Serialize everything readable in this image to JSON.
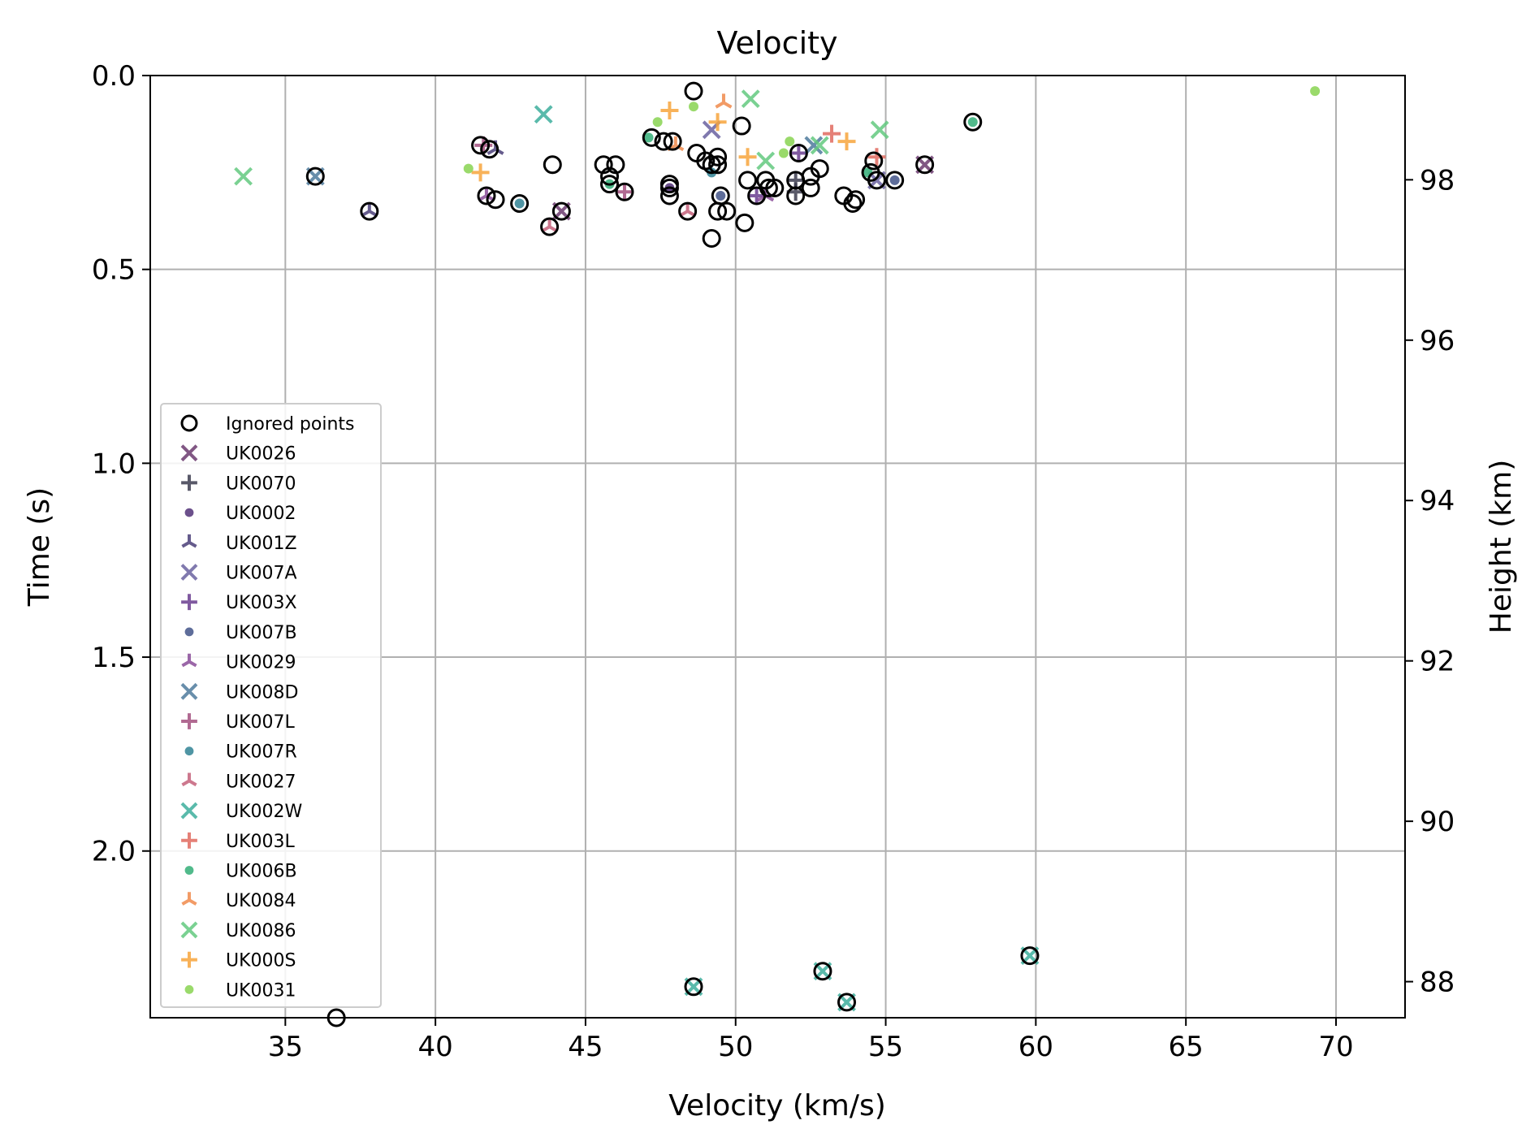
{
  "chart_data": {
    "type": "scatter",
    "title": "Velocity",
    "xlabel": "Velocity (km/s)",
    "ylabel": "Time (s)",
    "y2label": "Height (km)",
    "xlim": [
      30.5,
      72.3
    ],
    "ylim": [
      2.43,
      0.0
    ],
    "y2lim": [
      87.55,
      99.3
    ],
    "y_inverted": true,
    "grid": true,
    "legend_position": "lower-left",
    "x_ticks": [
      "35",
      "40",
      "45",
      "50",
      "55",
      "60",
      "65",
      "70"
    ],
    "y_ticks": [
      "0.0",
      "0.5",
      "1.0",
      "1.5",
      "2.0"
    ],
    "y2_ticks": [
      "88",
      "90",
      "92",
      "94",
      "96",
      "98"
    ],
    "series": [
      {
        "name": "Ignored points",
        "marker": "o-hollow",
        "color": "#000000",
        "points": [
          [
            48.6,
            0.04
          ],
          [
            57.9,
            0.12
          ],
          [
            41.5,
            0.18
          ],
          [
            41.8,
            0.19
          ],
          [
            47.6,
            0.17
          ],
          [
            47.9,
            0.17
          ],
          [
            48.7,
            0.2
          ],
          [
            49.4,
            0.21
          ],
          [
            49.0,
            0.22
          ],
          [
            49.2,
            0.23
          ],
          [
            49.4,
            0.23
          ],
          [
            45.6,
            0.23
          ],
          [
            46.0,
            0.23
          ],
          [
            43.9,
            0.23
          ],
          [
            50.2,
            0.13
          ],
          [
            52.1,
            0.2
          ],
          [
            54.6,
            0.22
          ],
          [
            56.3,
            0.23
          ],
          [
            52.8,
            0.24
          ],
          [
            54.5,
            0.25
          ],
          [
            45.8,
            0.26
          ],
          [
            50.4,
            0.27
          ],
          [
            52.0,
            0.27
          ],
          [
            52.5,
            0.26
          ],
          [
            51.0,
            0.27
          ],
          [
            55.3,
            0.27
          ],
          [
            54.7,
            0.27
          ],
          [
            45.8,
            0.28
          ],
          [
            47.8,
            0.28
          ],
          [
            47.8,
            0.29
          ],
          [
            51.1,
            0.29
          ],
          [
            51.3,
            0.29
          ],
          [
            52.5,
            0.29
          ],
          [
            49.5,
            0.31
          ],
          [
            41.7,
            0.31
          ],
          [
            42.0,
            0.32
          ],
          [
            47.8,
            0.31
          ],
          [
            52.0,
            0.31
          ],
          [
            53.6,
            0.31
          ],
          [
            54.0,
            0.32
          ],
          [
            53.9,
            0.33
          ],
          [
            46.3,
            0.3
          ],
          [
            50.7,
            0.31
          ],
          [
            42.8,
            0.33
          ],
          [
            44.2,
            0.35
          ],
          [
            48.4,
            0.35
          ],
          [
            49.4,
            0.35
          ],
          [
            49.7,
            0.35
          ],
          [
            37.8,
            0.35
          ],
          [
            36.0,
            0.26
          ],
          [
            50.3,
            0.38
          ],
          [
            43.8,
            0.39
          ],
          [
            49.2,
            0.42
          ],
          [
            47.2,
            0.16
          ],
          [
            59.8,
            2.27
          ],
          [
            52.9,
            2.31
          ],
          [
            48.6,
            2.35
          ],
          [
            53.7,
            2.39
          ],
          [
            36.7,
            2.43
          ]
        ]
      },
      {
        "name": "UK0026",
        "marker": "x",
        "color": "#6b3a6e",
        "points": [
          [
            44.2,
            0.35
          ],
          [
            56.3,
            0.23
          ]
        ]
      },
      {
        "name": "UK0070",
        "marker": "+",
        "color": "#3c3c4f",
        "points": [
          [
            52.0,
            0.3
          ],
          [
            52.0,
            0.27
          ]
        ]
      },
      {
        "name": "UK0002",
        "marker": "dot",
        "color": "#5c3d7f",
        "points": [
          [
            47.8,
            0.29
          ]
        ]
      },
      {
        "name": "UK001Z",
        "marker": "tri",
        "color": "#4a3e78",
        "points": [
          [
            37.8,
            0.35
          ],
          [
            42.0,
            0.19
          ]
        ]
      },
      {
        "name": "UK007A",
        "marker": "x",
        "color": "#6a62a0",
        "points": [
          [
            54.7,
            0.27
          ],
          [
            49.2,
            0.14
          ]
        ]
      },
      {
        "name": "UK003X",
        "marker": "+",
        "color": "#6a3d8f",
        "points": [
          [
            52.1,
            0.2
          ],
          [
            50.7,
            0.31
          ]
        ]
      },
      {
        "name": "UK007B",
        "marker": "dot",
        "color": "#4d5d8f",
        "points": [
          [
            55.3,
            0.27
          ],
          [
            49.5,
            0.31
          ]
        ]
      },
      {
        "name": "UK0029",
        "marker": "tri",
        "color": "#8a4c99",
        "points": [
          [
            41.7,
            0.31
          ],
          [
            51.0,
            0.31
          ]
        ]
      },
      {
        "name": "UK008D",
        "marker": "x",
        "color": "#4d7a9c",
        "points": [
          [
            36.0,
            0.26
          ],
          [
            52.6,
            0.18
          ]
        ]
      },
      {
        "name": "UK007L",
        "marker": "+",
        "color": "#a3507f",
        "points": [
          [
            46.3,
            0.3
          ],
          [
            41.6,
            0.18
          ]
        ]
      },
      {
        "name": "UK007R",
        "marker": "dot",
        "color": "#3c8a9a",
        "points": [
          [
            42.8,
            0.33
          ],
          [
            49.2,
            0.25
          ]
        ]
      },
      {
        "name": "UK0027",
        "marker": "tri",
        "color": "#c4607a",
        "points": [
          [
            43.8,
            0.39
          ],
          [
            48.4,
            0.35
          ]
        ]
      },
      {
        "name": "UK002W",
        "marker": "x",
        "color": "#3dae9c",
        "points": [
          [
            43.6,
            0.1
          ],
          [
            48.6,
            2.35
          ],
          [
            52.9,
            2.31
          ],
          [
            53.7,
            2.39
          ],
          [
            59.8,
            2.27
          ]
        ]
      },
      {
        "name": "UK003L",
        "marker": "+",
        "color": "#e06a5f",
        "points": [
          [
            53.2,
            0.15
          ],
          [
            54.7,
            0.21
          ]
        ]
      },
      {
        "name": "UK006B",
        "marker": "dot",
        "color": "#3eb37e",
        "points": [
          [
            47.1,
            0.16
          ],
          [
            45.8,
            0.28
          ],
          [
            57.9,
            0.12
          ],
          [
            54.4,
            0.25
          ]
        ]
      },
      {
        "name": "UK0084",
        "marker": "tri",
        "color": "#f08a4b",
        "points": [
          [
            49.6,
            0.07
          ],
          [
            48.0,
            0.18
          ]
        ]
      },
      {
        "name": "UK0086",
        "marker": "x",
        "color": "#63c97f",
        "points": [
          [
            33.6,
            0.26
          ],
          [
            50.5,
            0.06
          ],
          [
            54.8,
            0.14
          ],
          [
            52.8,
            0.18
          ],
          [
            51.0,
            0.22
          ]
        ]
      },
      {
        "name": "UK000S",
        "marker": "+",
        "color": "#f7a53c",
        "points": [
          [
            47.8,
            0.09
          ],
          [
            49.4,
            0.12
          ],
          [
            41.5,
            0.25
          ],
          [
            50.4,
            0.21
          ],
          [
            53.7,
            0.17
          ]
        ]
      },
      {
        "name": "UK0031",
        "marker": "dot",
        "color": "#8fd65b",
        "points": [
          [
            69.3,
            0.04
          ],
          [
            48.6,
            0.08
          ],
          [
            47.4,
            0.12
          ],
          [
            41.1,
            0.24
          ],
          [
            51.8,
            0.17
          ],
          [
            51.6,
            0.2
          ]
        ]
      }
    ]
  }
}
